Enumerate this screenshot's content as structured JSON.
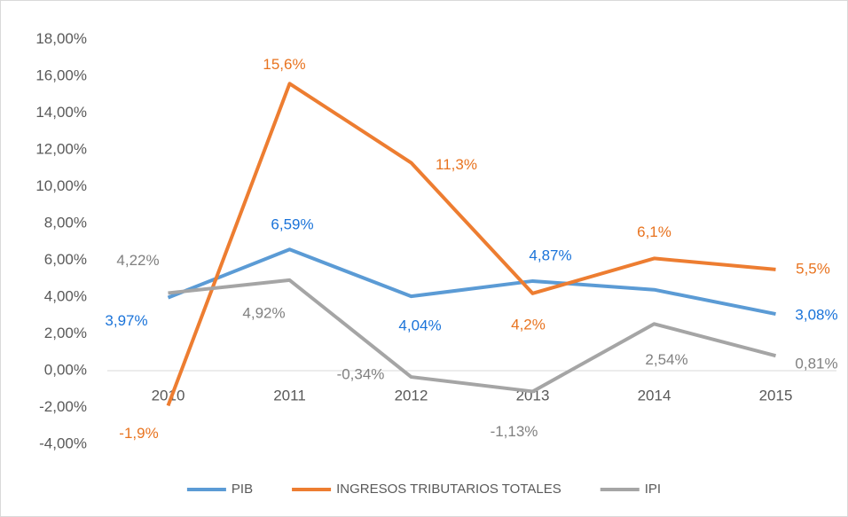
{
  "chart_data": {
    "type": "line",
    "categories": [
      "2010",
      "2011",
      "2012",
      "2013",
      "2014",
      "2015"
    ],
    "series": [
      {
        "name": "PIB",
        "color": "#5b9bd5",
        "label_color": "#1a73d9",
        "values": [
          3.97,
          6.59,
          4.04,
          4.87,
          4.4,
          3.08
        ],
        "value_labels": [
          "3,97%",
          "6,59%",
          "4,04%",
          "4,87%",
          null,
          "3,08%"
        ]
      },
      {
        "name": "INGRESOS TRIBUTARIOS TOTALES",
        "color": "#ed7d31",
        "label_color": "#e8731f",
        "values": [
          -1.9,
          15.6,
          11.3,
          4.2,
          6.1,
          5.5
        ],
        "value_labels": [
          "-1,9%",
          "15,6%",
          "11,3%",
          "4,2%",
          "6,1%",
          "5,5%"
        ]
      },
      {
        "name": "IPI",
        "color": "#a5a5a5",
        "label_color": "#808080",
        "values": [
          4.22,
          4.92,
          -0.34,
          -1.13,
          2.54,
          0.81
        ],
        "value_labels": [
          "4,22%",
          "4,92%",
          "-0,34%",
          "-1,13%",
          "2,54%",
          "0,81%"
        ]
      }
    ],
    "ylim": [
      -4,
      18
    ],
    "yticks": [
      {
        "value": -4,
        "label": "-4,00%"
      },
      {
        "value": -2,
        "label": "-2,00%"
      },
      {
        "value": 0,
        "label": "0,00%"
      },
      {
        "value": 2,
        "label": "2,00%"
      },
      {
        "value": 4,
        "label": "4,00%"
      },
      {
        "value": 6,
        "label": "6,00%"
      },
      {
        "value": 8,
        "label": "8,00%"
      },
      {
        "value": 10,
        "label": "10,00%"
      },
      {
        "value": 12,
        "label": "12,00%"
      },
      {
        "value": 14,
        "label": "14,00%"
      },
      {
        "value": 16,
        "label": "16,00%"
      },
      {
        "value": 18,
        "label": "18,00%"
      }
    ],
    "grid": false,
    "legend": "bottom"
  }
}
